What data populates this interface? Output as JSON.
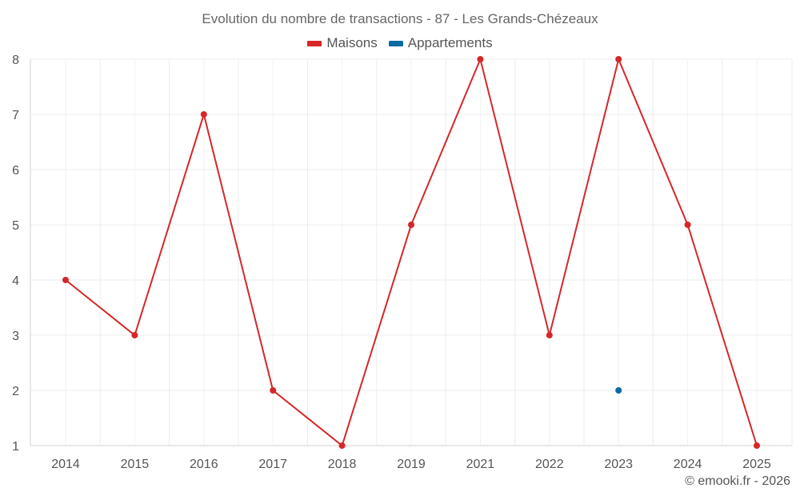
{
  "chart_data": {
    "type": "line",
    "title": "Evolution du nombre de transactions - 87 - Les Grands-Chézeaux",
    "xlabel": "",
    "ylabel": "",
    "categories": [
      "2014",
      "2015",
      "2016",
      "2017",
      "2018",
      "2019",
      "2021",
      "2022",
      "2023",
      "2024",
      "2025"
    ],
    "ylim": [
      1,
      8
    ],
    "yticks": [
      1,
      2,
      3,
      4,
      5,
      6,
      7,
      8
    ],
    "grid": true,
    "legend_position": "top-center",
    "series": [
      {
        "name": "Maisons",
        "color": "#d62728",
        "values": [
          4,
          3,
          7,
          2,
          1,
          5,
          8,
          3,
          8,
          5,
          1
        ]
      },
      {
        "name": "Appartements",
        "color": "#0b6aa2",
        "values": [
          null,
          null,
          null,
          null,
          null,
          null,
          null,
          null,
          2,
          null,
          null
        ]
      }
    ]
  },
  "credit": "© emooki.fr - 2026"
}
